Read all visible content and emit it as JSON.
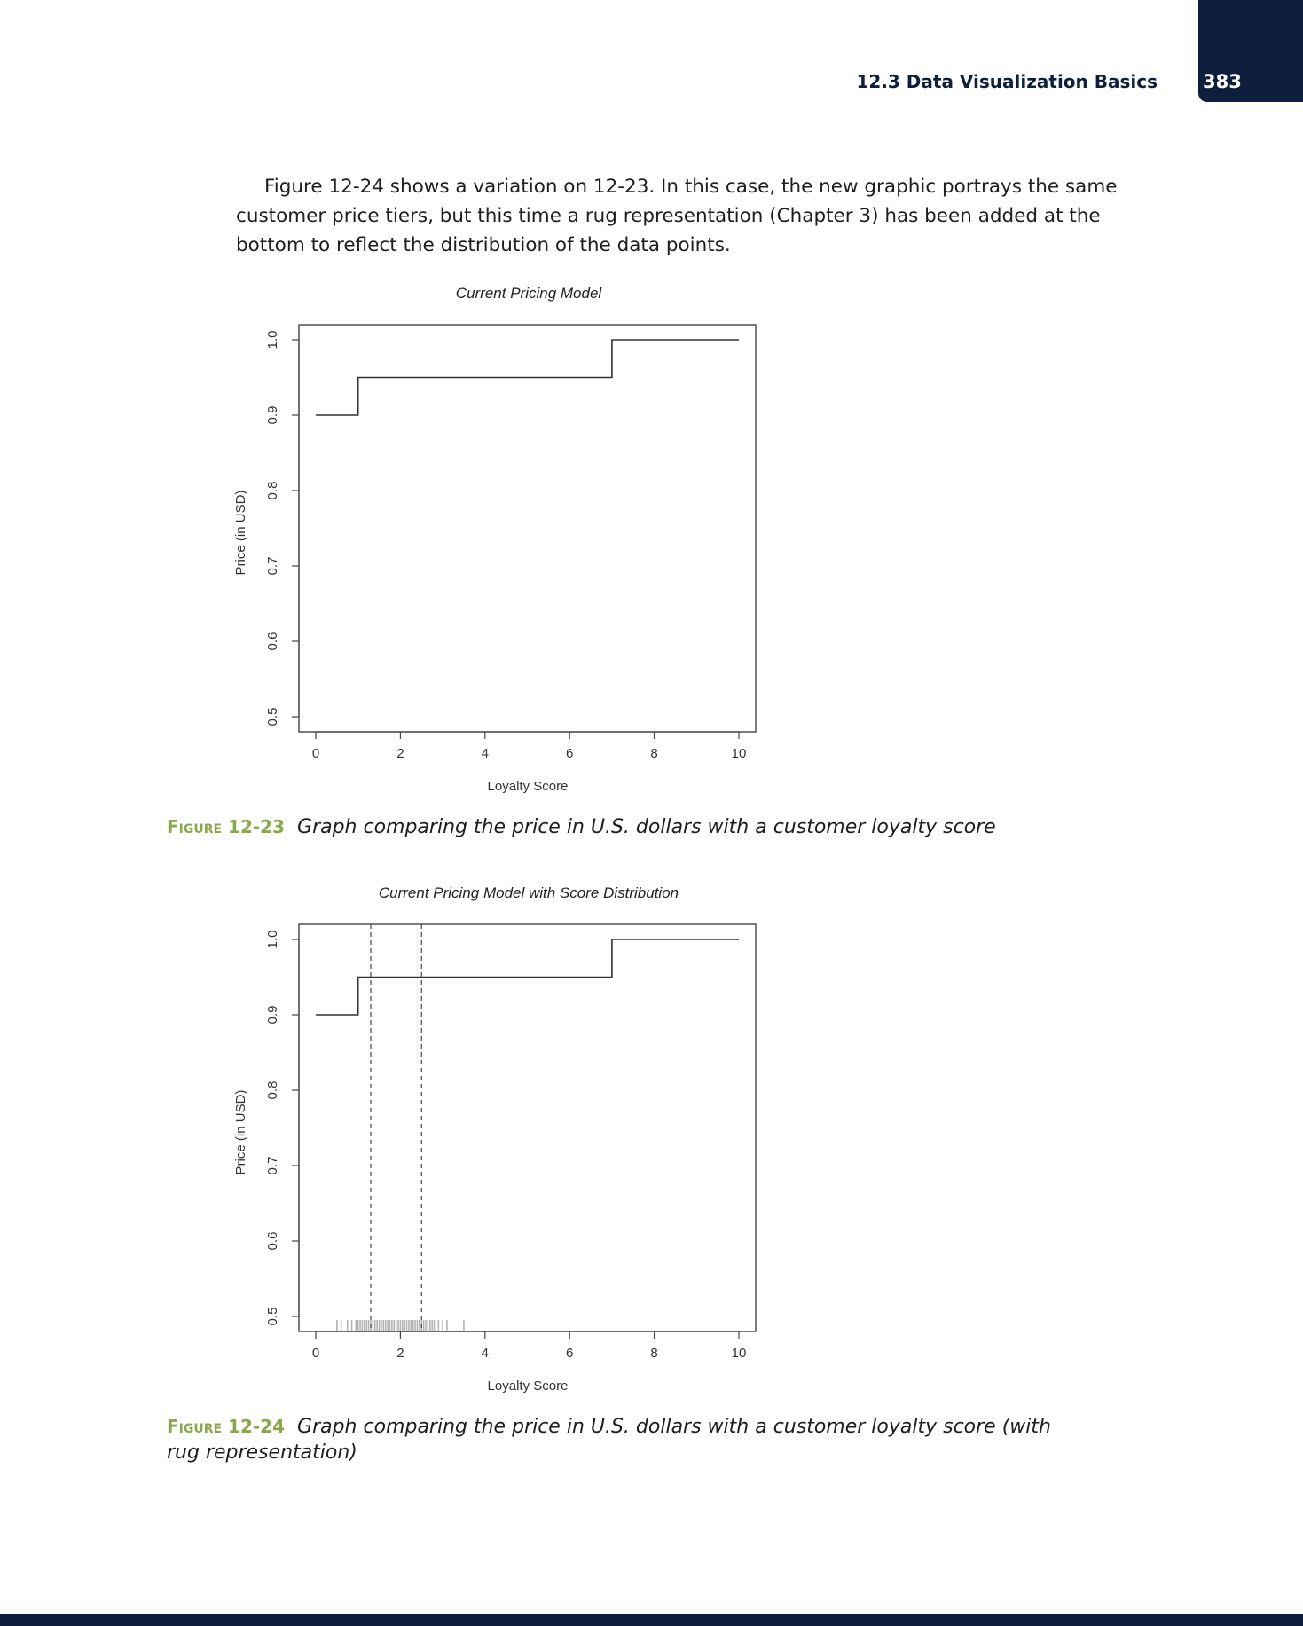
{
  "header": {
    "section_title": "12.3 Data Visualization Basics",
    "page_number": "383"
  },
  "body": {
    "paragraph": "Figure 12-24 shows a variation on 12-23. In this case, the new graphic portrays the same customer price tiers, but this time a rug representation (Chapter 3) has been added at the bottom to reflect the distribution of the data points."
  },
  "captions": [
    {
      "figure_word": "Figure",
      "number": "12-23",
      "text": "Graph comparing the price in U.S. dollars with a customer loyalty score"
    },
    {
      "figure_word": "Figure",
      "number": "12-24",
      "text": "Graph comparing the price in U.S. dollars with a customer loyalty score (with rug representation)"
    }
  ],
  "colors": {
    "navy": "#0d1f3c",
    "caption_green": "#8aa84a",
    "rug_gray": "#9a9a9a"
  },
  "chart_data": [
    {
      "type": "line",
      "title": "Current Pricing Model",
      "xlabel": "Loyalty Score",
      "ylabel": "Price (in USD)",
      "xlim": [
        0,
        10
      ],
      "ylim": [
        0.5,
        1.0
      ],
      "xticks": [
        "0",
        "2",
        "4",
        "6",
        "8",
        "10"
      ],
      "yticks": [
        "0.5",
        "0.6",
        "0.7",
        "0.8",
        "0.9",
        "1.0"
      ],
      "grid": false,
      "step": true,
      "x": [
        0,
        1,
        1,
        7,
        7,
        10
      ],
      "y": [
        0.9,
        0.9,
        0.95,
        0.95,
        1.0,
        1.0
      ]
    },
    {
      "type": "line",
      "title": "Current Pricing Model with Score Distribution",
      "xlabel": "Loyalty Score",
      "ylabel": "Price (in USD)",
      "xlim": [
        0,
        10
      ],
      "ylim": [
        0.5,
        1.0
      ],
      "xticks": [
        "0",
        "2",
        "4",
        "6",
        "8",
        "10"
      ],
      "yticks": [
        "0.5",
        "0.6",
        "0.7",
        "0.8",
        "0.9",
        "1.0"
      ],
      "grid": false,
      "step": true,
      "x": [
        0,
        1,
        1,
        7,
        7,
        10
      ],
      "y": [
        0.9,
        0.9,
        0.95,
        0.95,
        1.0,
        1.0
      ],
      "vlines": [
        1.3,
        2.5
      ],
      "rug": [
        0.5,
        0.6,
        0.75,
        0.85,
        0.95,
        1.0,
        1.05,
        1.1,
        1.15,
        1.2,
        1.25,
        1.3,
        1.35,
        1.4,
        1.45,
        1.5,
        1.55,
        1.6,
        1.65,
        1.7,
        1.75,
        1.8,
        1.85,
        1.9,
        1.95,
        2.0,
        2.05,
        2.1,
        2.15,
        2.2,
        2.25,
        2.3,
        2.35,
        2.4,
        2.45,
        2.5,
        2.55,
        2.6,
        2.65,
        2.7,
        2.75,
        2.8,
        2.9,
        3.0,
        3.1,
        3.5
      ]
    }
  ]
}
